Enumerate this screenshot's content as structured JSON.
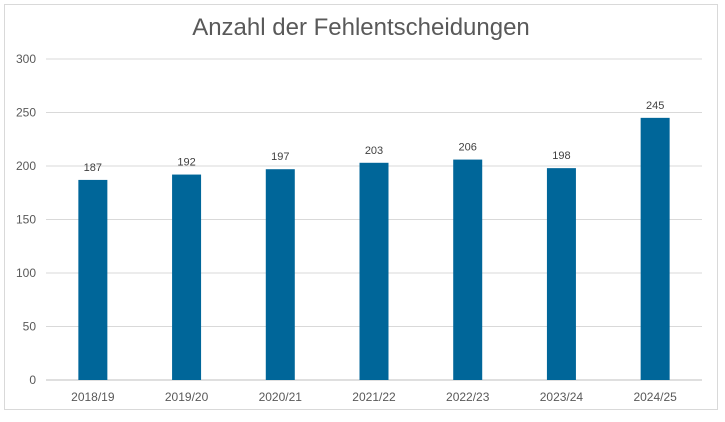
{
  "chart_data": {
    "type": "bar",
    "title": "Anzahl der Fehlentscheidungen",
    "xlabel": "",
    "ylabel": "",
    "categories": [
      "2018/19",
      "2019/20",
      "2020/21",
      "2021/22",
      "2022/23",
      "2023/24",
      "2024/25"
    ],
    "values": [
      187,
      192,
      197,
      203,
      206,
      198,
      245
    ],
    "ylim": [
      0,
      300
    ],
    "yticks": [
      0,
      50,
      100,
      150,
      200,
      250,
      300
    ],
    "grid": true,
    "legend": "none",
    "bar_color": "#006699",
    "data_labels": true
  }
}
